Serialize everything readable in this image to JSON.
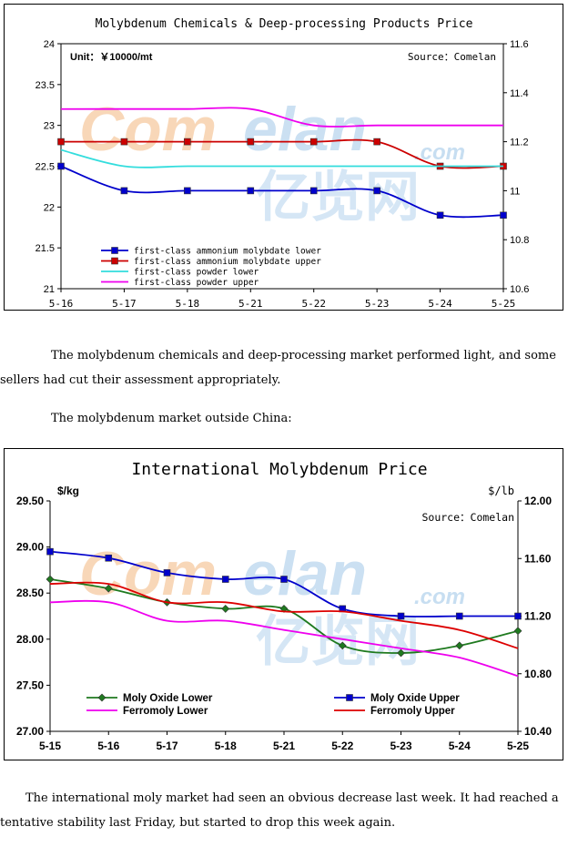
{
  "chart_data": [
    {
      "type": "line",
      "title": "Molybdenum Chemicals & Deep-processing Products Price",
      "unit_note": "Unit：￥10000/mt",
      "source_note": "Source：Comelan",
      "categories": [
        "5-16",
        "5-17",
        "5-18",
        "5-21",
        "5-22",
        "5-23",
        "5-24",
        "5-25"
      ],
      "ylim": [
        21,
        24
      ],
      "yticks": [
        "21",
        "21.5",
        "22",
        "22.5",
        "23",
        "23.5",
        "24"
      ],
      "y2lim": [
        10.6,
        11.6
      ],
      "y2ticks": [
        "10.6",
        "10.8",
        "11",
        "11.2",
        "11.4",
        "11.6"
      ],
      "legend": "bottom-left",
      "series": [
        {
          "name": "first-class ammonium molybdate lower",
          "color": "#0000cc",
          "marker": "square",
          "values": [
            22.5,
            22.2,
            22.2,
            22.2,
            22.2,
            22.2,
            21.9,
            21.9
          ]
        },
        {
          "name": "first-class ammonium molybdate upper",
          "color": "#cc0000",
          "marker": "square",
          "values": [
            22.8,
            22.8,
            22.8,
            22.8,
            22.8,
            22.8,
            22.5,
            22.5
          ]
        },
        {
          "name": "first-class powder lower",
          "color": "#33dddd",
          "marker": "none",
          "values": [
            22.7,
            22.5,
            22.5,
            22.5,
            22.5,
            22.5,
            22.5,
            22.5
          ]
        },
        {
          "name": "first-class powder upper",
          "color": "#ee00ee",
          "marker": "none",
          "values": [
            23.2,
            23.2,
            23.2,
            23.2,
            23.0,
            23.0,
            23.0,
            23.0
          ]
        }
      ]
    },
    {
      "type": "line",
      "title": "International Molybdenum Price",
      "ylabel": "$/kg",
      "y2label": "$/lb",
      "source_note": "Source：Comelan",
      "categories": [
        "5-15",
        "5-16",
        "5-17",
        "5-18",
        "5-21",
        "5-22",
        "5-23",
        "5-24",
        "5-25"
      ],
      "ylim": [
        27.0,
        29.5
      ],
      "yticks": [
        "27.00",
        "27.50",
        "28.00",
        "28.50",
        "29.00",
        "29.50"
      ],
      "y2lim": [
        10.4,
        12.0
      ],
      "y2ticks": [
        "10.40",
        "10.80",
        "11.20",
        "11.60",
        "12.00"
      ],
      "legend": "bottom",
      "series": [
        {
          "name": "Moly Oxide Lower",
          "color": "#1f7a1f",
          "marker": "diamond",
          "values": [
            28.65,
            28.55,
            28.4,
            28.33,
            28.33,
            27.93,
            27.85,
            27.93,
            28.09
          ]
        },
        {
          "name": "Moly Oxide Upper",
          "color": "#0000cc",
          "marker": "square",
          "values": [
            28.95,
            28.88,
            28.72,
            28.65,
            28.65,
            28.33,
            28.25,
            28.25,
            28.25
          ]
        },
        {
          "name": "Ferromoly Lower",
          "color": "#ee00ee",
          "marker": "none",
          "values": [
            28.4,
            28.4,
            28.2,
            28.2,
            28.1,
            28.0,
            27.9,
            27.8,
            27.6
          ]
        },
        {
          "name": "Ferromoly Upper",
          "color": "#dd0000",
          "marker": "none",
          "values": [
            28.6,
            28.6,
            28.4,
            28.4,
            28.3,
            28.3,
            28.2,
            28.1,
            27.9
          ]
        }
      ]
    }
  ],
  "watermark": {
    "brand": "Comelan",
    "domain": ".com",
    "cn": "亿览网"
  },
  "text": {
    "para1": "The molybdenum chemicals and deep-processing market performed light, and some sellers had cut their assessment appropriately.",
    "para2": "The molybdenum market outside China:",
    "para3": "The international moly market had seen an obvious decrease last week. It had reached a tentative stability last Friday, but started to drop this week again."
  }
}
